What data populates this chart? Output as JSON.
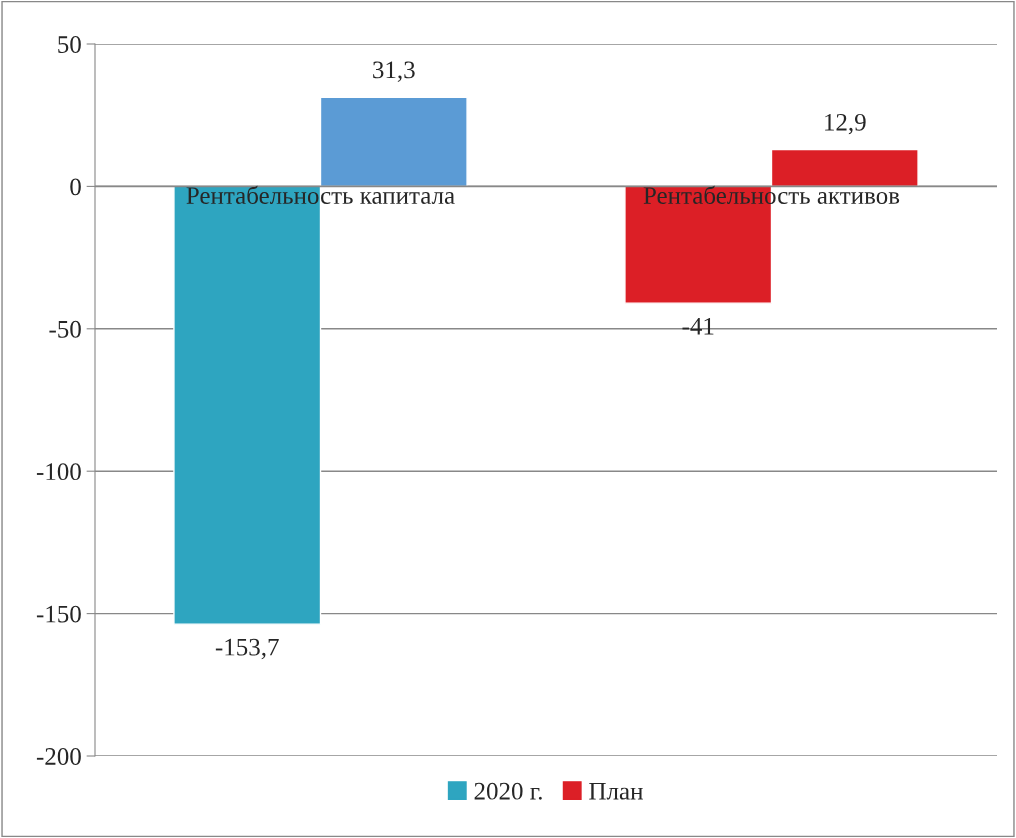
{
  "chart_data": {
    "type": "bar",
    "categories": [
      "Рентабельность капитала",
      "Рентабельность активов"
    ],
    "series": [
      {
        "name": "2020 г.",
        "color": "#2ea5c0",
        "colors": [
          "#2ea5c0",
          "#dc1f26"
        ],
        "values": [
          -153.7,
          -41
        ],
        "value_labels": [
          "-153,7",
          "-41"
        ]
      },
      {
        "name": "План",
        "color": "#dc1f26",
        "colors": [
          "#5b9bd5",
          "#dc1f26"
        ],
        "values": [
          31.3,
          12.9
        ],
        "value_labels": [
          "31,3",
          "12,9"
        ]
      }
    ],
    "ylim": [
      -200,
      50
    ],
    "yticks": [
      {
        "value": -200,
        "label": "-200"
      },
      {
        "value": -150,
        "label": "-150"
      },
      {
        "value": -100,
        "label": "-100"
      },
      {
        "value": -50,
        "label": "-50"
      },
      0,
      50
    ],
    "grid": "y",
    "legend": "bottom"
  }
}
